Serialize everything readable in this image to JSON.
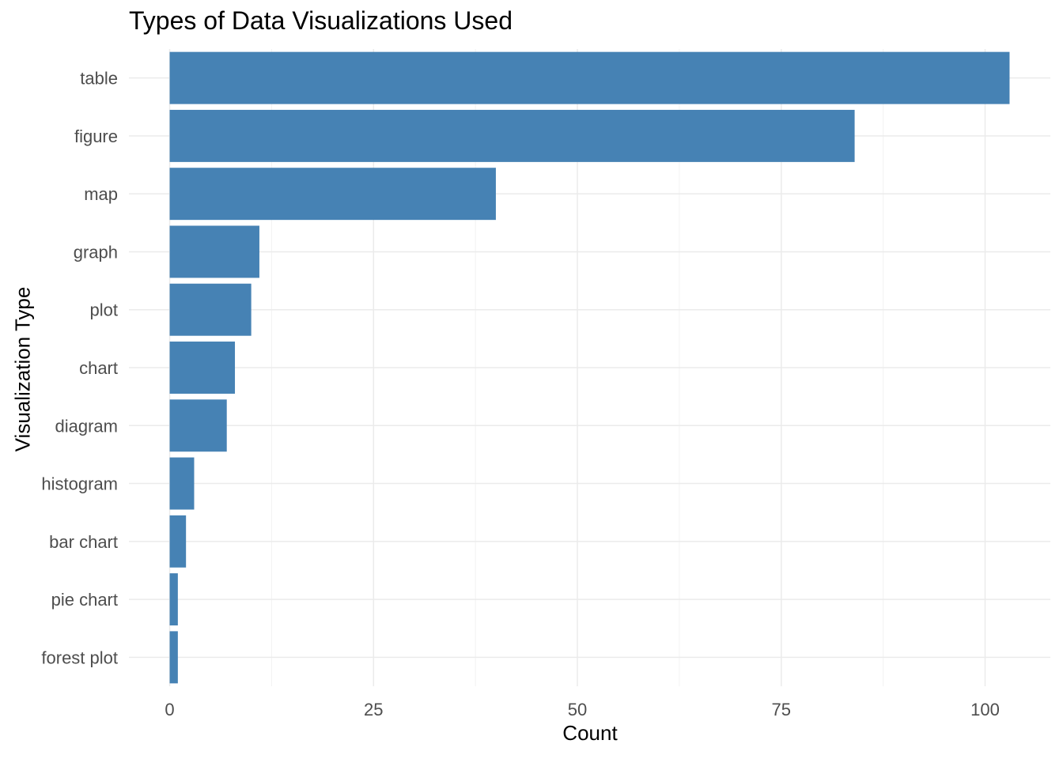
{
  "chart_data": {
    "type": "bar",
    "orientation": "horizontal",
    "title": "Types of Data Visualizations Used",
    "xlabel": "Count",
    "ylabel": "Visualization Type",
    "categories": [
      "table",
      "figure",
      "map",
      "graph",
      "plot",
      "chart",
      "diagram",
      "histogram",
      "bar chart",
      "pie chart",
      "forest plot"
    ],
    "values": [
      103,
      84,
      40,
      11,
      10,
      8,
      7,
      3,
      2,
      1,
      1
    ],
    "x_ticks": [
      0,
      25,
      50,
      75,
      100
    ],
    "xlim": [
      -5,
      108
    ],
    "grid": true,
    "legend": "none",
    "colors": {
      "bar": "#4682B4",
      "grid_major": "#EBEBEB",
      "grid_minor": "#F2F2F2",
      "tick_label": "#4D4D4D"
    }
  }
}
